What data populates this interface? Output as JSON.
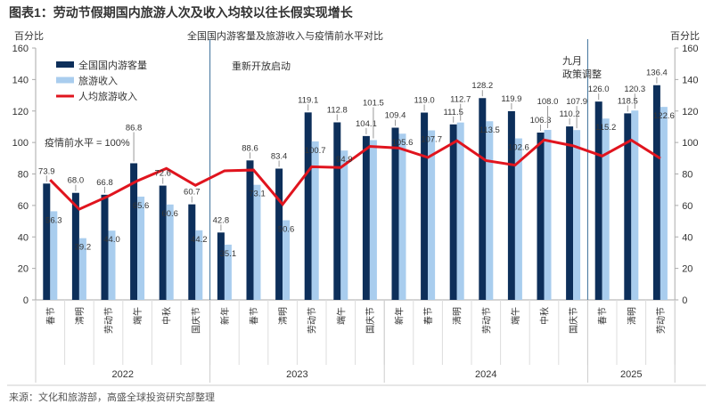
{
  "title": "图表1：劳动节假期国内旅游人次及收入均较以往长假实现增长",
  "source": "来源：文化和旅游部，高盛全球投资研究部整理",
  "chart_data": {
    "type": "bar",
    "title": "全国国内游客量及旅游收入与疫情前水平对比",
    "ylabel_left": "百分比",
    "ylabel_right": "百分比",
    "ylim": [
      0,
      160
    ],
    "yticks": [
      0,
      20,
      40,
      60,
      80,
      100,
      120,
      140,
      160
    ],
    "grid": false,
    "legend_position": "top-left",
    "categories": [
      "春节",
      "清明",
      "劳动节",
      "端午",
      "中秋",
      "国庆节",
      "新年",
      "春节",
      "清明",
      "劳动节",
      "端午",
      "国庆节",
      "新年",
      "春节",
      "清明",
      "劳动节",
      "端午",
      "中秋",
      "国庆节",
      "春节",
      "清明",
      "劳动节"
    ],
    "groups": [
      {
        "label": "2022",
        "count": 6
      },
      {
        "label": "2023",
        "count": 6
      },
      {
        "label": "2024",
        "count": 7
      },
      {
        "label": "2025",
        "count": 3
      }
    ],
    "series": [
      {
        "name": "全国国内游客量",
        "kind": "bar",
        "color": "#0d2f5a",
        "values": [
          73.9,
          68.0,
          66.8,
          86.8,
          72.6,
          60.7,
          42.8,
          88.6,
          83.4,
          119.1,
          112.8,
          104.1,
          109.4,
          119.0,
          111.5,
          128.2,
          119.9,
          106.3,
          110.2,
          126.0,
          118.5,
          136.4
        ]
      },
      {
        "name": "旅游收入",
        "kind": "bar",
        "color": "#a9cdee",
        "values": [
          56.3,
          39.2,
          44.0,
          65.6,
          60.6,
          44.2,
          35.1,
          73.1,
          50.6,
          100.7,
          94.9,
          101.5,
          105.6,
          107.7,
          112.7,
          113.5,
          102.6,
          108.0,
          107.9,
          115.2,
          120.3,
          122.6
        ]
      },
      {
        "name": "人均旅游收入",
        "kind": "line",
        "color": "#e0141e",
        "values": [
          76.2,
          57.6,
          65.9,
          75.6,
          83.5,
          72.8,
          82.0,
          82.5,
          60.7,
          84.6,
          84.1,
          97.5,
          96.5,
          90.5,
          101.1,
          88.5,
          85.6,
          101.6,
          97.9,
          91.4,
          101.5,
          89.9
        ]
      }
    ],
    "annotations": [
      {
        "text": "疫情前水平 = 100%"
      },
      {
        "text": "重新开放启动",
        "after_category_index": 5
      },
      {
        "text": "九月\n政策调整",
        "after_category_index": 18
      }
    ]
  }
}
